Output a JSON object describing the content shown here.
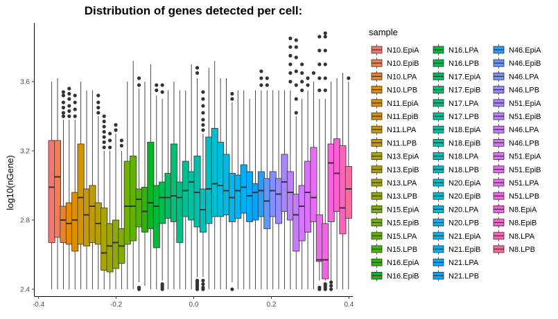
{
  "chart_data": {
    "type": "box",
    "title": "Distribution of genes detected per cell:",
    "xlabel": "",
    "ylabel": "log10(nGene)",
    "xlim": [
      -0.41,
      0.41
    ],
    "ylim": [
      2.36,
      3.94
    ],
    "x_ticks": [
      -0.4,
      -0.2,
      0.0,
      0.2,
      0.4
    ],
    "x_tick_labels": [
      "-0.4",
      "-0.2",
      "0.0",
      "0.2",
      "0.4"
    ],
    "y_ticks": [
      2.4,
      2.8,
      3.2,
      3.6
    ],
    "y_tick_labels": [
      "2.4",
      "2.8",
      "3.2",
      "3.6"
    ],
    "grid": false,
    "legend": {
      "title": "sample",
      "position": "right",
      "columns": 3
    },
    "series": [
      {
        "name": "N10.EpiA",
        "color": "#F8766D",
        "x": -0.366,
        "whisker_low": 2.4,
        "q1": 2.67,
        "median": 2.99,
        "q3": 3.26,
        "whisker_high": 3.6,
        "outliers": []
      },
      {
        "name": "N10.EpiB",
        "color": "#F27D52",
        "x": -0.351,
        "whisker_low": 2.4,
        "q1": 2.7,
        "median": 3.05,
        "q3": 3.26,
        "whisker_high": 3.62,
        "outliers": []
      },
      {
        "name": "N10.LPA",
        "color": "#EA8331",
        "x": -0.336,
        "whisker_low": 2.4,
        "q1": 2.67,
        "median": 2.8,
        "q3": 2.88,
        "whisker_high": 3.38,
        "outliers": [
          3.4,
          3.42,
          3.45,
          3.48,
          3.52,
          3.54
        ]
      },
      {
        "name": "N10.LPB",
        "color": "#E38900",
        "x": -0.321,
        "whisker_low": 2.4,
        "q1": 2.66,
        "median": 2.78,
        "q3": 2.9,
        "whisker_high": 3.38,
        "outliers": [
          3.4,
          3.43,
          3.46,
          3.5,
          3.53,
          3.56
        ]
      },
      {
        "name": "N11.EpiA",
        "color": "#DB8E00",
        "x": -0.306,
        "whisker_low": 2.4,
        "q1": 2.62,
        "median": 2.8,
        "q3": 2.96,
        "whisker_high": 3.38,
        "outliers": [
          3.4,
          3.44,
          3.48,
          3.52
        ]
      },
      {
        "name": "N11.EpiB",
        "color": "#D39200",
        "x": -0.291,
        "whisker_low": 2.4,
        "q1": 2.66,
        "median": 2.93,
        "q3": 3.24,
        "whisker_high": 3.6,
        "outliers": []
      },
      {
        "name": "N11.LPA",
        "color": "#C99800",
        "x": -0.276,
        "whisker_low": 2.4,
        "q1": 2.65,
        "median": 2.83,
        "q3": 2.98,
        "whisker_high": 3.55,
        "outliers": []
      },
      {
        "name": "N11.LPB",
        "color": "#BE9C00",
        "x": -0.261,
        "whisker_low": 2.4,
        "q1": 2.67,
        "median": 2.88,
        "q3": 3.0,
        "whisker_high": 3.55,
        "outliers": []
      },
      {
        "name": "N13.EpiA",
        "color": "#B3A000",
        "x": -0.246,
        "whisker_low": 2.4,
        "q1": 2.66,
        "median": 2.78,
        "q3": 2.9,
        "whisker_high": 3.4,
        "outliers": [
          3.42,
          3.45,
          3.48,
          3.52
        ]
      },
      {
        "name": "N13.EpiB",
        "color": "#A8A400",
        "x": -0.231,
        "whisker_low": 2.4,
        "q1": 2.51,
        "median": 2.61,
        "q3": 2.87,
        "whisker_high": 3.2,
        "outliers": [
          3.22,
          3.25,
          3.28,
          3.31,
          3.34,
          3.37,
          3.4
        ]
      },
      {
        "name": "N13.LPA",
        "color": "#9CA700",
        "x": -0.216,
        "whisker_low": 2.4,
        "q1": 2.5,
        "median": 2.65,
        "q3": 2.78,
        "whisker_high": 3.2,
        "outliers": [
          3.22,
          3.26,
          3.3
        ]
      },
      {
        "name": "N13.LPB",
        "color": "#8FAA00",
        "x": -0.201,
        "whisker_low": 2.4,
        "q1": 2.52,
        "median": 2.67,
        "q3": 2.8,
        "whisker_high": 3.3,
        "outliers": [
          3.32,
          3.35
        ]
      },
      {
        "name": "N15.EpiA",
        "color": "#81AD00",
        "x": -0.186,
        "whisker_low": 2.4,
        "q1": 2.55,
        "median": 2.65,
        "q3": 2.75,
        "whisker_high": 3.2,
        "outliers": [
          3.23,
          3.26
        ]
      },
      {
        "name": "N15.EpiB",
        "color": "#72B000",
        "x": -0.171,
        "whisker_low": 2.4,
        "q1": 2.66,
        "median": 2.88,
        "q3": 3.14,
        "whisker_high": 3.6,
        "outliers": []
      },
      {
        "name": "N15.LPA",
        "color": "#60B300",
        "x": -0.156,
        "whisker_low": 2.4,
        "q1": 2.68,
        "median": 2.88,
        "q3": 3.17,
        "whisker_high": 3.72,
        "outliers": []
      },
      {
        "name": "N15.LPB",
        "color": "#4BB500",
        "x": -0.141,
        "whisker_low": 2.44,
        "q1": 2.76,
        "median": 2.92,
        "q3": 2.98,
        "whisker_high": 3.56,
        "outliers": [
          2.4,
          2.41,
          3.58,
          3.62
        ]
      },
      {
        "name": "N16.EpiA",
        "color": "#2DB600",
        "x": -0.126,
        "whisker_low": 2.42,
        "q1": 2.73,
        "median": 2.85,
        "q3": 2.99,
        "whisker_high": 3.6,
        "outliers": []
      },
      {
        "name": "N16.EpiB",
        "color": "#00B81F",
        "x": -0.111,
        "whisker_low": 2.4,
        "q1": 2.75,
        "median": 2.9,
        "q3": 3.25,
        "whisker_high": 3.7,
        "outliers": []
      },
      {
        "name": "N16.LPA",
        "color": "#00BA38",
        "x": -0.096,
        "whisker_low": 2.4,
        "q1": 2.64,
        "median": 2.88,
        "q3": 3.0,
        "whisker_high": 3.52,
        "outliers": [
          3.55,
          3.58
        ]
      },
      {
        "name": "N16.LPB",
        "color": "#00BB4E",
        "x": -0.081,
        "whisker_low": 2.45,
        "q1": 2.78,
        "median": 2.93,
        "q3": 3.02,
        "whisker_high": 3.5,
        "outliers": [
          2.4,
          2.41,
          2.42,
          2.43,
          3.54,
          3.58
        ]
      },
      {
        "name": "N17.EpiA",
        "color": "#00BC61",
        "x": -0.066,
        "whisker_low": 2.4,
        "q1": 2.81,
        "median": 2.93,
        "q3": 3.07,
        "whisker_high": 3.55,
        "outliers": []
      },
      {
        "name": "N17.EpiB",
        "color": "#00BE72",
        "x": -0.051,
        "whisker_low": 2.4,
        "q1": 2.79,
        "median": 2.94,
        "q3": 3.24,
        "whisker_high": 3.6,
        "outliers": []
      },
      {
        "name": "N17.LPA",
        "color": "#00BF82",
        "x": -0.036,
        "whisker_low": 2.4,
        "q1": 2.67,
        "median": 2.93,
        "q3": 3.02,
        "whisker_high": 3.55,
        "outliers": []
      },
      {
        "name": "N17.LPB",
        "color": "#00C091",
        "x": -0.021,
        "whisker_low": 2.4,
        "q1": 2.82,
        "median": 2.97,
        "q3": 3.14,
        "whisker_high": 3.55,
        "outliers": []
      },
      {
        "name": "N18.EpiA",
        "color": "#00C09F",
        "x": -0.006,
        "whisker_low": 2.4,
        "q1": 2.8,
        "median": 3.02,
        "q3": 3.08,
        "whisker_high": 3.7,
        "outliers": []
      },
      {
        "name": "N18.EpiB",
        "color": "#00C0AC",
        "x": 0.009,
        "whisker_low": 2.47,
        "q1": 2.76,
        "median": 2.96,
        "q3": 3.17,
        "whisker_high": 3.62,
        "outliers": [
          2.4,
          2.41,
          2.42,
          2.43,
          2.44,
          2.45,
          3.65,
          3.68
        ]
      },
      {
        "name": "N18.LPA",
        "color": "#00C0B8",
        "x": 0.024,
        "whisker_low": 2.47,
        "q1": 2.73,
        "median": 2.86,
        "q3": 2.98,
        "whisker_high": 3.3,
        "outliers": [
          2.4,
          2.41,
          2.43,
          2.45,
          3.32,
          3.35,
          3.38,
          3.42,
          3.46,
          3.5,
          3.54
        ]
      },
      {
        "name": "N18.LPB",
        "color": "#00BFC4",
        "x": 0.039,
        "whisker_low": 2.4,
        "q1": 2.78,
        "median": 2.98,
        "q3": 3.28,
        "whisker_high": 3.68,
        "outliers": []
      },
      {
        "name": "N20.EpiA",
        "color": "#00BECF",
        "x": 0.054,
        "whisker_low": 2.4,
        "q1": 2.82,
        "median": 3.01,
        "q3": 3.33,
        "whisker_high": 3.72,
        "outliers": []
      },
      {
        "name": "N20.EpiB",
        "color": "#00BCDA",
        "x": 0.069,
        "whisker_low": 2.4,
        "q1": 2.82,
        "median": 3.0,
        "q3": 3.25,
        "whisker_high": 3.62,
        "outliers": []
      },
      {
        "name": "N20.LPA",
        "color": "#00BAE3",
        "x": 0.084,
        "whisker_low": 2.4,
        "q1": 2.83,
        "median": 2.97,
        "q3": 3.18,
        "whisker_high": 3.62,
        "outliers": []
      },
      {
        "name": "N20.LPB",
        "color": "#00B7EB",
        "x": 0.099,
        "whisker_low": 2.44,
        "q1": 2.79,
        "median": 2.93,
        "q3": 3.07,
        "whisker_high": 3.48,
        "outliers": [
          2.4,
          3.5,
          3.53
        ]
      },
      {
        "name": "N21.EpiA",
        "color": "#00B4F2",
        "x": 0.114,
        "whisker_low": 2.4,
        "q1": 2.81,
        "median": 2.97,
        "q3": 3.06,
        "whisker_high": 3.55,
        "outliers": []
      },
      {
        "name": "N21.EpiB",
        "color": "#00B0F6",
        "x": 0.129,
        "whisker_low": 2.4,
        "q1": 2.84,
        "median": 2.99,
        "q3": 3.12,
        "whisker_high": 3.55,
        "outliers": []
      },
      {
        "name": "N21.LPA",
        "color": "#00ABFB",
        "x": 0.144,
        "whisker_low": 2.4,
        "q1": 2.79,
        "median": 2.94,
        "q3": 3.08,
        "whisker_high": 3.5,
        "outliers": []
      },
      {
        "name": "N21.LPB",
        "color": "#00A5FF",
        "x": 0.159,
        "whisker_low": 2.4,
        "q1": 2.8,
        "median": 2.96,
        "q3": 3.01,
        "whisker_high": 3.55,
        "outliers": []
      },
      {
        "name": "N46.EpiA",
        "color": "#289CFF",
        "x": 0.174,
        "whisker_low": 2.4,
        "q1": 2.82,
        "median": 2.97,
        "q3": 3.08,
        "whisker_high": 3.55,
        "outliers": [
          3.58,
          3.62,
          3.66
        ]
      },
      {
        "name": "N46.EpiB",
        "color": "#6196FF",
        "x": 0.189,
        "whisker_low": 2.4,
        "q1": 2.75,
        "median": 2.91,
        "q3": 3.04,
        "whisker_high": 3.55,
        "outliers": [
          3.58,
          3.62
        ]
      },
      {
        "name": "N46.LPA",
        "color": "#8090FF",
        "x": 0.204,
        "whisker_low": 2.4,
        "q1": 2.82,
        "median": 2.97,
        "q3": 3.08,
        "whisker_high": 3.55,
        "outliers": []
      },
      {
        "name": "N46.LPB",
        "color": "#988AFF",
        "x": 0.219,
        "whisker_low": 2.4,
        "q1": 2.78,
        "median": 2.95,
        "q3": 3.04,
        "whisker_high": 3.55,
        "outliers": []
      },
      {
        "name": "N51.EpiA",
        "color": "#A984FF",
        "x": 0.234,
        "whisker_low": 2.4,
        "q1": 2.85,
        "median": 3.02,
        "q3": 3.18,
        "whisker_high": 3.55,
        "outliers": []
      },
      {
        "name": "N51.EpiB",
        "color": "#B97FFF",
        "x": 0.249,
        "whisker_low": 2.4,
        "q1": 2.8,
        "median": 2.96,
        "q3": 3.08,
        "whisker_high": 3.55,
        "outliers": [
          3.6,
          3.65,
          3.7,
          3.75,
          3.8,
          3.85
        ]
      },
      {
        "name": "N46.LPA",
        "color": "#C77CFF",
        "x": 0.264,
        "whisker_low": 2.4,
        "q1": 2.62,
        "median": 2.83,
        "q3": 2.95,
        "whisker_high": 3.4,
        "outliers": [
          3.42,
          3.5,
          3.58,
          3.66,
          3.74,
          3.8,
          3.84
        ]
      },
      {
        "name": "N46.LPB",
        "color": "#D277FF",
        "x": 0.279,
        "whisker_low": 2.4,
        "q1": 2.68,
        "median": 2.88,
        "q3": 3.0,
        "whisker_high": 3.5,
        "outliers": [
          3.55,
          3.6,
          3.65,
          3.7
        ]
      },
      {
        "name": "N51.EpiA",
        "color": "#DC71FA",
        "x": 0.294,
        "whisker_low": 2.4,
        "q1": 2.73,
        "median": 2.96,
        "q3": 3.14,
        "whisker_high": 3.55,
        "outliers": [
          3.58,
          3.62
        ]
      },
      {
        "name": "N51.EpiB",
        "color": "#E56DF4",
        "x": 0.309,
        "whisker_low": 2.4,
        "q1": 2.79,
        "median": 2.93,
        "q3": 3.22,
        "whisker_high": 3.6,
        "outliers": [
          3.65
        ]
      },
      {
        "name": "N51.LPA",
        "color": "#EC69EC",
        "x": 0.324,
        "whisker_low": 2.45,
        "q1": 2.56,
        "median": 2.57,
        "q3": 2.83,
        "whisker_high": 3.5,
        "outliers": [
          2.4,
          2.41,
          3.55,
          3.62,
          3.7,
          3.78,
          3.86
        ]
      },
      {
        "name": "N51.LPB",
        "color": "#F365E3",
        "x": 0.339,
        "whisker_low": 2.45,
        "q1": 2.46,
        "median": 2.57,
        "q3": 2.78,
        "whisker_high": 3.5,
        "outliers": [
          2.4,
          2.41,
          2.42,
          2.43,
          3.55,
          3.62,
          3.7,
          3.78,
          3.86,
          3.88
        ]
      },
      {
        "name": "N8.EpiA",
        "color": "#F863DB",
        "x": 0.354,
        "whisker_low": 2.45,
        "q1": 2.79,
        "median": 3.13,
        "q3": 3.24,
        "whisker_high": 3.6,
        "outliers": [
          2.4,
          2.42,
          2.44
        ]
      },
      {
        "name": "N8.EpiB",
        "color": "#FC61D1",
        "x": 0.369,
        "whisker_low": 2.4,
        "q1": 2.85,
        "median": 3.07,
        "q3": 3.27,
        "whisker_high": 3.62,
        "outliers": []
      },
      {
        "name": "N8.LPA",
        "color": "#FF62BC",
        "x": 0.384,
        "whisker_low": 2.4,
        "q1": 2.72,
        "median": 2.87,
        "q3": 3.23,
        "whisker_high": 3.65,
        "outliers": []
      },
      {
        "name": "N8.LPB",
        "color": "#FF68A1",
        "x": 0.399,
        "whisker_low": 2.4,
        "q1": 2.81,
        "median": 2.98,
        "q3": 3.11,
        "whisker_high": 3.6,
        "outliers": [
          3.62
        ]
      }
    ]
  }
}
